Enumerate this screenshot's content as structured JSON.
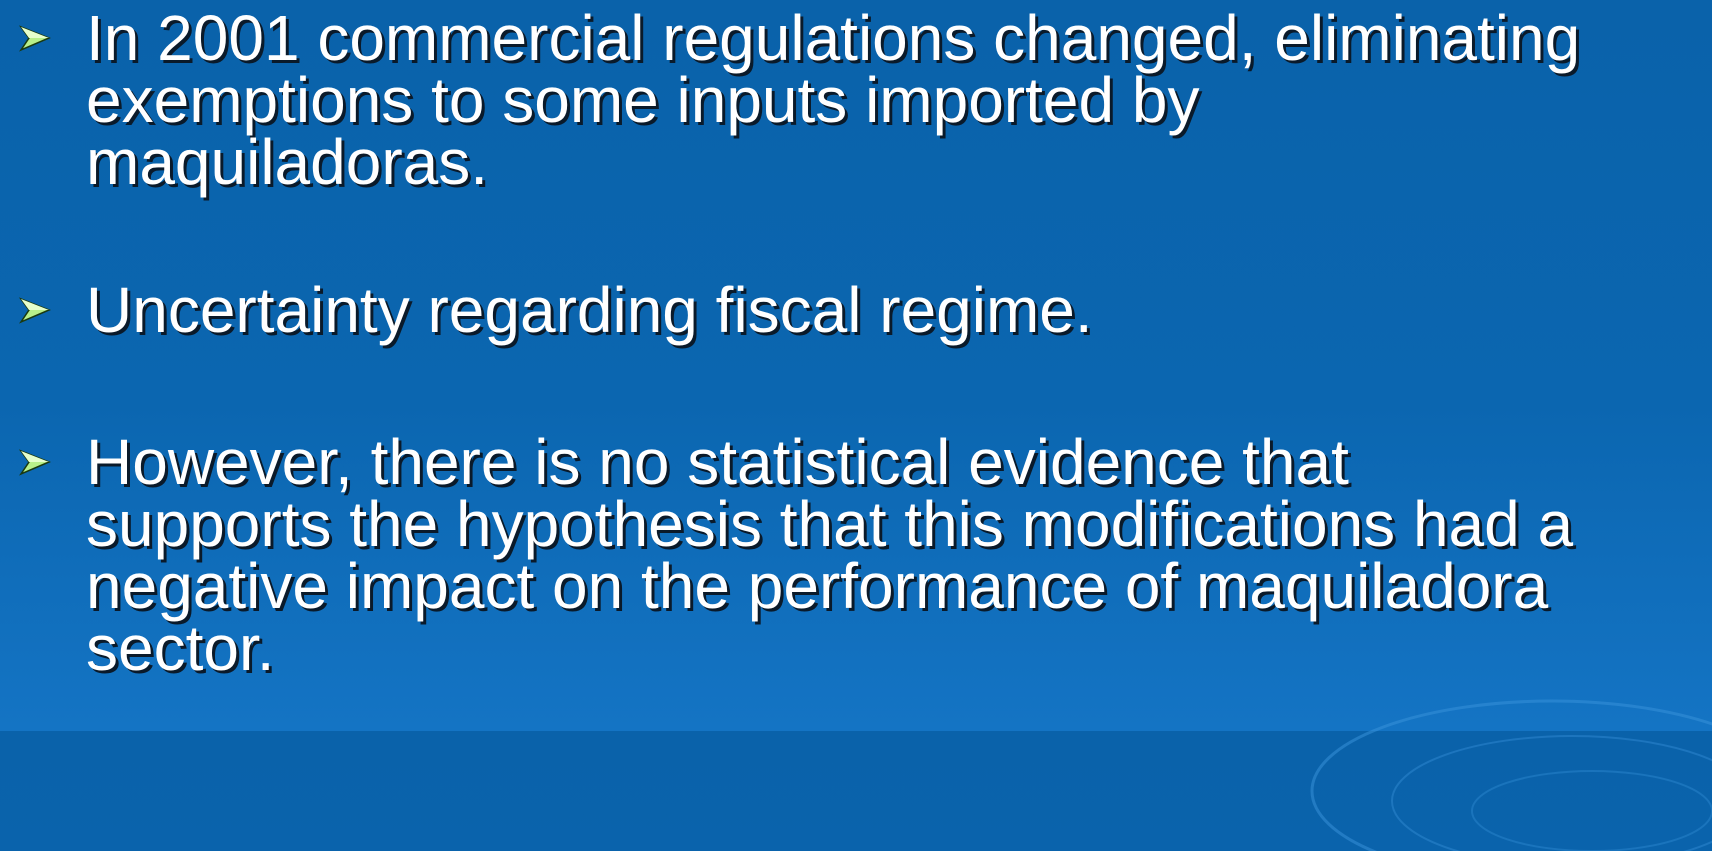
{
  "bullets": [
    {
      "lines": [
        "In 2001 commercial regulations changed, eliminating",
        "exemptions to some inputs imported by",
        "maquiladoras."
      ]
    },
    {
      "lines": [
        "Uncertainty regarding fiscal regime."
      ]
    },
    {
      "lines": [
        "However, there is no statistical evidence that",
        "supports the hypothesis that this modifications had a",
        "negative impact on the performance of maquiladora",
        "sector."
      ]
    }
  ]
}
